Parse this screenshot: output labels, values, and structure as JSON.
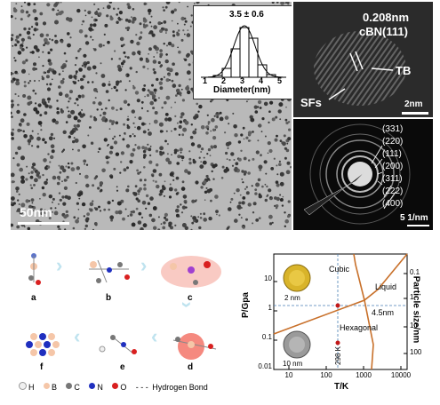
{
  "panel_tem": {
    "scale_label": "50nm"
  },
  "histogram": {
    "mean_label": "3.5 ± 0.6",
    "xlabel": "Diameter(nm)",
    "xticks": [
      "1",
      "2",
      "3",
      "4",
      "5"
    ]
  },
  "panel_hrtem": {
    "d_spacing": "0.208nm",
    "plane": "cBN(111)",
    "tb_label": "TB",
    "sfs_label": "SFs",
    "scale_label": "2nm"
  },
  "panel_saed": {
    "rings": [
      "(331)",
      "(220)",
      "(111)",
      "(200)",
      "(311)",
      "(222)",
      "(400)"
    ],
    "scale_label": "5 1/nm"
  },
  "mechanism": {
    "steps": [
      "a",
      "b",
      "c",
      "d",
      "e",
      "f"
    ],
    "legend": [
      {
        "symbol": "H",
        "color": "#f0f0f0"
      },
      {
        "symbol": "B",
        "color": "#f5c6a8"
      },
      {
        "symbol": "C",
        "color": "#777777"
      },
      {
        "symbol": "N",
        "color": "#1f2fbf"
      },
      {
        "symbol": "O",
        "color": "#d92020"
      }
    ],
    "hbond_label": "Hydrogen Bond"
  },
  "phase_diagram": {
    "ylabel": "P/Gpa",
    "xlabel": "T/K",
    "ylabel_right": "Particle size/nm",
    "yticks": [
      "0.01",
      "0.1",
      "1",
      "10"
    ],
    "xticks": [
      "10",
      "100",
      "1000",
      "10000"
    ],
    "yticks_right": [
      "0.1",
      "1",
      "10",
      "100"
    ],
    "regions": [
      "Cubic",
      "Liquid",
      "Hexagonal"
    ],
    "annot_size": "4.5nm",
    "annot_temp": "298 K",
    "inset_top_scale": "2 nm",
    "inset_bottom_scale": "10 nm",
    "colors": {
      "boundary": "#c8702a",
      "guide": "#4a7fb5",
      "marker": "#c21818"
    }
  }
}
